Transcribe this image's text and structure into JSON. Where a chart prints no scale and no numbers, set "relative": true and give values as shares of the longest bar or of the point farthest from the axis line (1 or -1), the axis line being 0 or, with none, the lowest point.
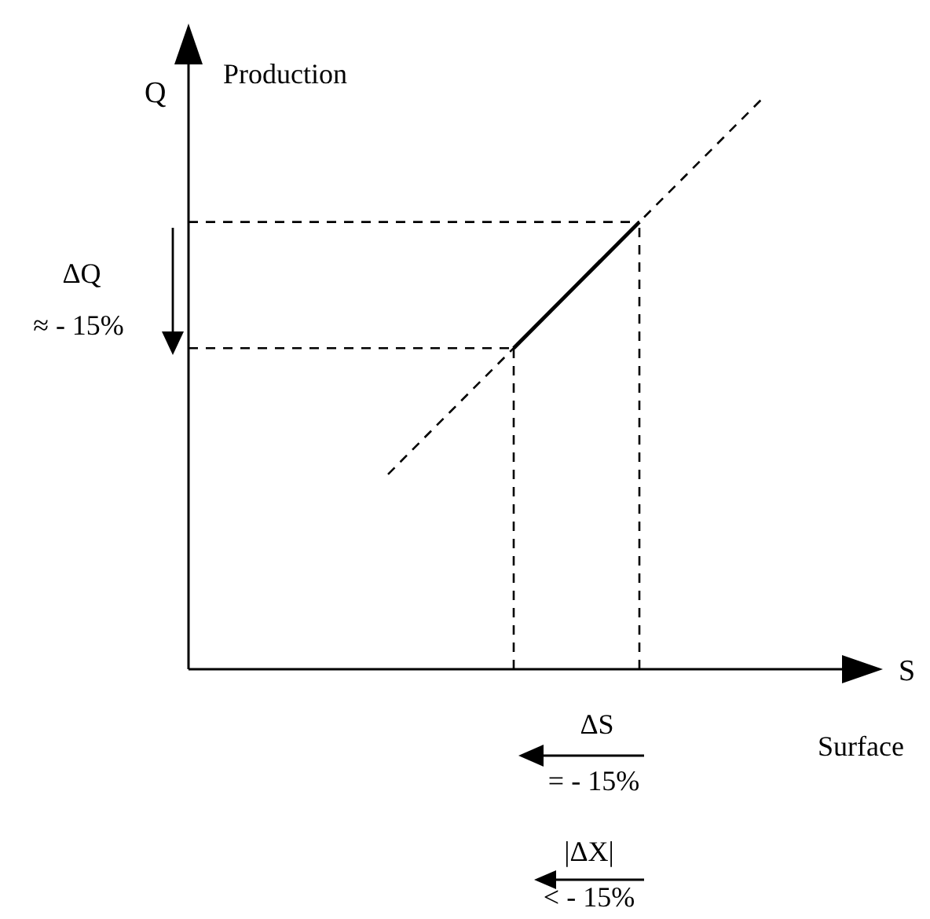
{
  "chart_data": {
    "type": "line",
    "relative": true,
    "xlabel": "S",
    "ylabel": "Q",
    "categories": [
      null,
      null,
      null,
      null,
      null,
      null,
      null,
      null,
      null,
      null
    ],
    "annotations": [
      "Production",
      "Surface",
      "ΔQ",
      "≈ - 15%",
      "ΔS",
      "= - 15%",
      "|ΔX|",
      "< - 15%"
    ],
    "series": [
      {
        "color": "#000000",
        "line_style": "dashed",
        "values": [
          null,
          null,
          null,
          0.34,
          0.45,
          0.56,
          0.67,
          0.78,
          0.89,
          1
        ]
      },
      {
        "color": "#000000",
        "line_style": "solid",
        "values": [
          null,
          null,
          null,
          null,
          null,
          0.56,
          0.67,
          0.78,
          null,
          null
        ]
      }
    ],
    "ref_lines": [
      {
        "axis": "y",
        "value": 0.56,
        "color": "#000000",
        "line_style": "dashed"
      },
      {
        "axis": "y",
        "value": 0.78,
        "color": "#000000",
        "line_style": "dashed"
      }
    ]
  }
}
